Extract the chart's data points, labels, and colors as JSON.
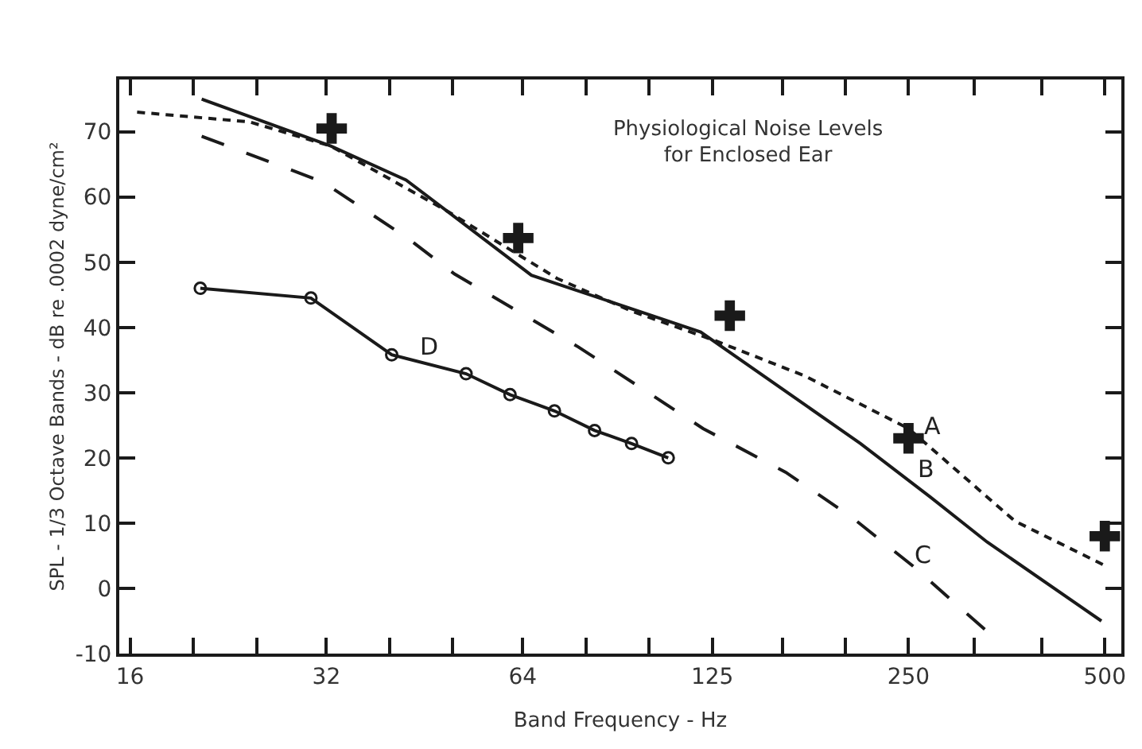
{
  "chart_data": {
    "type": "line",
    "title": "Physiological Noise Levels\nfor Enclosed Ear",
    "xlabel": "Band Frequency - Hz",
    "ylabel": "SPL - 1/3 Octave Bands - dB re .0002 dyne/cm²",
    "log": "x",
    "xlim": [
      15.4,
      530
    ],
    "ylim": [
      -10,
      78
    ],
    "xticks": [
      16,
      {
        "value": 20,
        "label": null
      },
      {
        "value": 25,
        "label": null
      },
      32,
      {
        "value": 40,
        "label": null
      },
      {
        "value": 50,
        "label": null
      },
      64,
      {
        "value": 80,
        "label": null
      },
      {
        "value": 100,
        "label": null
      },
      125,
      {
        "value": 160,
        "label": null
      },
      {
        "value": 200,
        "label": null
      },
      250,
      {
        "value": 315,
        "label": null
      },
      {
        "value": 400,
        "label": null
      },
      500
    ],
    "yticks": [
      -10,
      0,
      10,
      20,
      30,
      40,
      50,
      60,
      70
    ],
    "series": [
      {
        "color": "#1a1a1a",
        "line_style": "dashed",
        "marker": "none",
        "x": [
          16.4,
          24.4,
          32.5,
          48.9,
          72.3,
          94,
          126,
          173,
          250,
          364,
          500
        ],
        "values": [
          73,
          71.5,
          67.8,
          57.9,
          47.5,
          42.5,
          38,
          32.6,
          24.5,
          10.3,
          3.5
        ]
      },
      {
        "color": "#1a1a1a",
        "line_style": "solid",
        "marker": "none",
        "x": [
          20.6,
          32.5,
          42.4,
          66,
          99.7,
          120,
          211,
          270,
          330,
          494
        ],
        "values": [
          75,
          67.8,
          62.6,
          48,
          42,
          39.3,
          22.2,
          14,
          7.1,
          -5
        ]
      },
      {
        "color": "#1a1a1a",
        "line_style": "longdash",
        "marker": "none",
        "x": [
          20.6,
          31.6,
          42.6,
          50.3,
          77.9,
          121,
          162,
          204,
          254,
          329
        ],
        "values": [
          69.3,
          62.3,
          53.7,
          48.2,
          37,
          24.5,
          17.8,
          11,
          3.4,
          -6.5
        ]
      },
      {
        "color": "#1a1a1a",
        "line_style": "solid",
        "marker": "circle",
        "x": [
          20.5,
          30.3,
          40.3,
          52.4,
          61.2,
          71.6,
          82.5,
          94,
          107
        ],
        "values": [
          46,
          44.5,
          35.8,
          32.9,
          29.7,
          27.2,
          24.2,
          22.2,
          20
        ]
      },
      {
        "type": "scatter",
        "color": "#1a1a1a",
        "marker": "cross",
        "x": [
          32.6,
          63,
          133,
          250,
          500
        ],
        "values": [
          70.5,
          53.7,
          41.8,
          23,
          8
        ]
      }
    ],
    "annotations": [
      {
        "text": "A",
        "x": 272,
        "y": 22.3
      },
      {
        "text": "B",
        "x": 266,
        "y": 15.7
      },
      {
        "text": "C",
        "x": 262,
        "y": 2.5
      },
      {
        "text": "D",
        "x": 46,
        "y": 34.4
      }
    ]
  }
}
